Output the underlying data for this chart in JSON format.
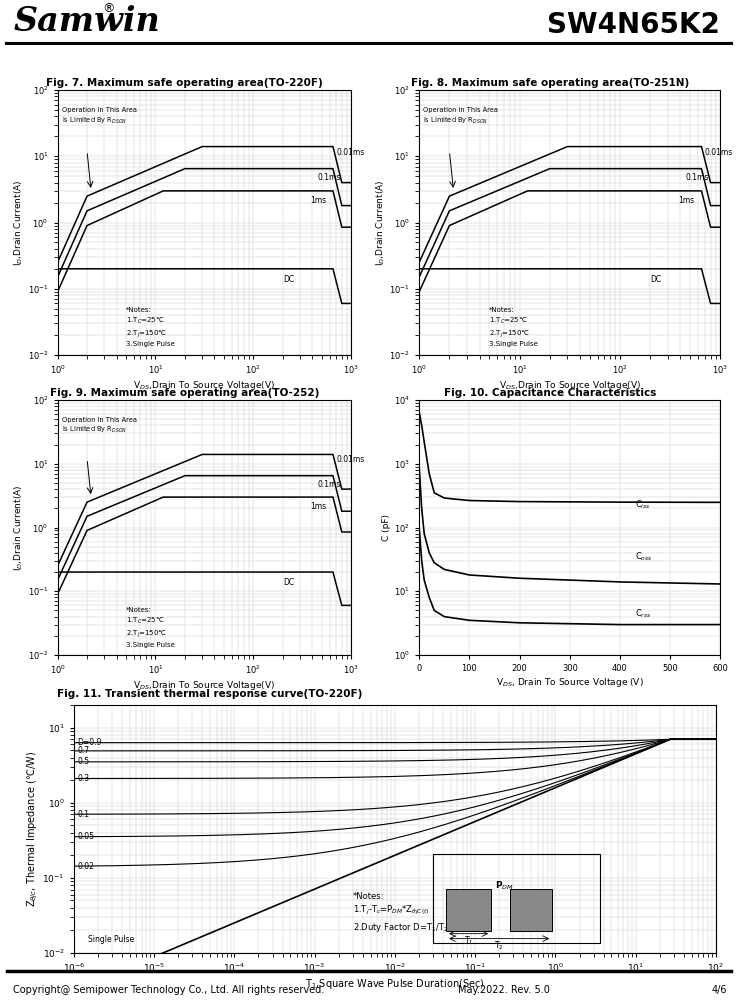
{
  "title_left": "Samwin",
  "title_right": "SW4N65K2",
  "fig7_title": "Fig. 7. Maximum safe operating area(TO-220F)",
  "fig8_title": "Fig. 8. Maximum safe operating area(TO-251N)",
  "fig9_title": "Fig. 9. Maximum safe operating area(TO-252)",
  "fig10_title": "Fig. 10. Capacitance Characteristics",
  "fig11_title": "Fig. 11. Transient thermal response curve(TO-220F)",
  "footer_left": "Copyright@ Semipower Technology Co., Ltd. All rights reserved.",
  "footer_center": "May.2022. Rev. 5.0",
  "footer_right": "4/6",
  "background_color": "#ffffff",
  "grid_color": "#cccccc",
  "soa_annotation": "Operation In This Area\nIs Limited By R",
  "soa_rdson_sub": "DSON",
  "soa_notes_line1": "*Notes:",
  "soa_notes_line2": "1.Tₙ=25℃",
  "soa_notes_line3": "2.Tⱼ=150℃",
  "soa_notes_line4": "3.Single Pulse",
  "thermal_d_labels": [
    "D=0.9",
    "0.7",
    "0.5",
    "0.3",
    "0.1",
    "0.05",
    "0.02"
  ],
  "thermal_notes_line1": "*Notes:",
  "thermal_notes_line2": "1.Tⱼ=Tⱼ=Pₘₘ*Z",
  "thermal_notes_line3": "2.Duty Factor D=T₁/T₂",
  "cap_ciss_label": "Cᵢₛₛ",
  "cap_coss_label": "Cₒₛₛ",
  "cap_crss_label": "Cᵣₛₛ"
}
